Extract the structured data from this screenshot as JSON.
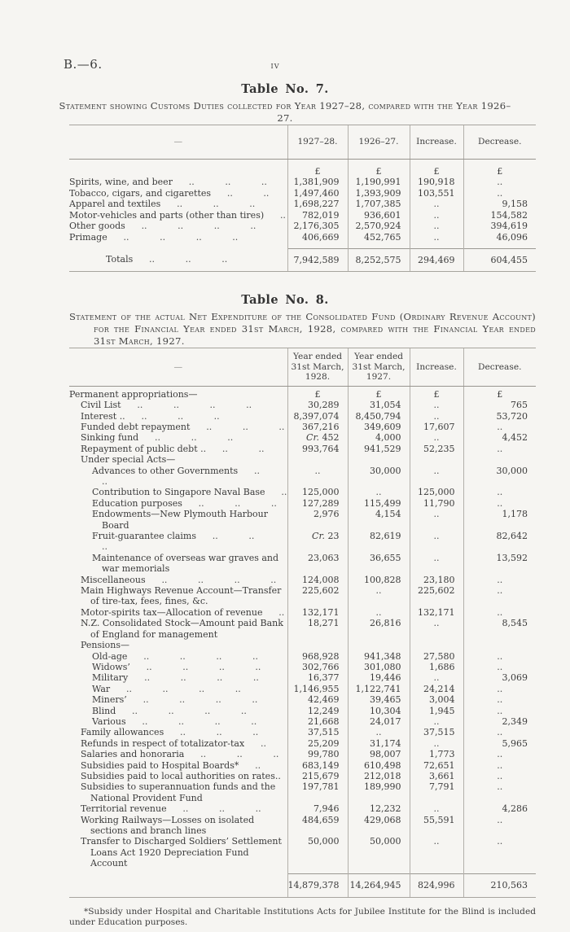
{
  "page": {
    "report_code": "B.—6.",
    "page_number": "iv"
  },
  "table7": {
    "title": "Table No. 7.",
    "caption": "Statement showing Customs Duties collected for Year 1927–28, compared with the Year 1926–27.",
    "stub_header": "—",
    "columns": [
      "1927–28.",
      "1926–27.",
      "Increase.",
      "Decrease."
    ],
    "rows": [
      {
        "label": "",
        "cls": "currency",
        "v": [
          "£",
          "£",
          "£",
          "£"
        ]
      },
      {
        "label": "Spirits, wine, and beer",
        "leader": ".. .. ..",
        "v": [
          "1,381,909",
          "1,190,991",
          "190,918",
          ".."
        ]
      },
      {
        "label": "Tobacco, cigars, and cigarettes",
        "leader": ".. ..",
        "v": [
          "1,497,460",
          "1,393,909",
          "103,551",
          ".."
        ]
      },
      {
        "label": "Apparel and textiles",
        "leader": ".. .. ..",
        "v": [
          "1,698,227",
          "1,707,385",
          "..",
          "9,158"
        ]
      },
      {
        "label": "Motor-vehicles and parts (other than tires)",
        "leader": "..",
        "v": [
          "782,019",
          "936,601",
          "..",
          "154,582"
        ]
      },
      {
        "label": "Other goods",
        "leader": ".. .. .. ..",
        "v": [
          "2,176,305",
          "2,570,924",
          "..",
          "394,619"
        ]
      },
      {
        "label": "Primage",
        "cls": "lastbody",
        "leader": ".. .. .. ..",
        "v": [
          "406,669",
          "452,765",
          "..",
          "46,096"
        ]
      }
    ],
    "totals": {
      "label": "Totals",
      "cls": "t7tot",
      "leader": ".. .. ..",
      "v": [
        "7,942,589",
        "8,252,575",
        "294,469",
        "604,455"
      ]
    }
  },
  "table8": {
    "title": "Table No. 8.",
    "caption": "Statement of the actual Net Expenditure of the Consolidated Fund (Ordinary Revenue Account) for the Financial Year ended 31st March, 1928, compared with the Financial Year ended 31st March, 1927.",
    "stub_header": "—",
    "columns": [
      "Year ended 31st March, 1928.",
      "Year ended 31st March, 1927.",
      "Increase.",
      "Decrease."
    ],
    "rows": [
      {
        "label": "Permanent appropriations—",
        "indent": 0,
        "cls": "currency8",
        "v": [
          "£",
          "£",
          "£",
          "£"
        ]
      },
      {
        "label": "Civil List",
        "indent": 1,
        "leader": ".. .. .. ..",
        "v": [
          "30,289",
          "31,054",
          "..",
          "765"
        ]
      },
      {
        "label": "Interest ..",
        "indent": 1,
        "leader": ".. .. ..",
        "v": [
          "8,397,074",
          "8,450,794",
          "..",
          "53,720"
        ]
      },
      {
        "label": "Funded debt repayment",
        "indent": 1,
        "leader": ".. .. ..",
        "v": [
          "367,216",
          "349,609",
          "17,607",
          ".."
        ]
      },
      {
        "label": "Sinking fund",
        "indent": 1,
        "leader": ".. .. ..",
        "v": [
          "Cr. 452",
          "4,000",
          "..",
          "4,452"
        ]
      },
      {
        "label": "Repayment of public debt ..",
        "indent": 1,
        "leader": ".. ..",
        "v": [
          "993,764",
          "941,529",
          "52,235",
          ".."
        ]
      },
      {
        "label": "Under special Acts—",
        "indent": 1,
        "v": null
      },
      {
        "label": "Advances to other Governments",
        "indent": 2,
        "leader": ".. ..",
        "v": [
          "..",
          "30,000",
          "..",
          "30,000"
        ]
      },
      {
        "label": "Contribution to Singapore Naval Base",
        "indent": 2,
        "leader": "..",
        "v": [
          "125,000",
          "..",
          "125,000",
          ".."
        ]
      },
      {
        "label": "Education purposes",
        "indent": 2,
        "leader": ".. .. ..",
        "v": [
          "127,289",
          "115,499",
          "11,790",
          ".."
        ]
      },
      {
        "label": "Endowments—New Plymouth Harbour Board",
        "indent": 2,
        "v": [
          "2,976",
          "4,154",
          "..",
          "1,178"
        ]
      },
      {
        "label": "Fruit-guarantee claims",
        "indent": 2,
        "leader": ".. .. ..",
        "v": [
          "Cr. 23",
          "82,619",
          "..",
          "82,642"
        ]
      },
      {
        "label": "Maintenance of overseas war graves and war memorials",
        "indent": 2,
        "v": [
          "23,063",
          "36,655",
          "..",
          "13,592"
        ]
      },
      {
        "label": "Miscellaneous",
        "indent": 1,
        "leader": ".. .. .. ..",
        "v": [
          "124,008",
          "100,828",
          "23,180",
          ".."
        ]
      },
      {
        "label": "Main Highways Revenue Account—Transfer of tire-tax, fees, fines, &c.",
        "indent": 1,
        "v": [
          "225,602",
          "..",
          "225,602",
          ".."
        ]
      },
      {
        "label": "Motor-spirits tax—Allocation of revenue",
        "indent": 1,
        "leader": "..",
        "v": [
          "132,171",
          "..",
          "132,171",
          ".."
        ]
      },
      {
        "label": "N.Z. Consolidated Stock—Amount paid Bank of England for management",
        "indent": 1,
        "v": [
          "18,271",
          "26,816",
          "..",
          "8,545"
        ]
      },
      {
        "label": "Pensions—",
        "indent": 1,
        "v": null
      },
      {
        "label": "Old-age",
        "indent": 2,
        "leader": ".. .. .. ..",
        "v": [
          "968,928",
          "941,348",
          "27,580",
          ".."
        ]
      },
      {
        "label": "Widows’",
        "indent": 2,
        "leader": ".. .. .. ..",
        "v": [
          "302,766",
          "301,080",
          "1,686",
          ".."
        ]
      },
      {
        "label": "Military",
        "indent": 2,
        "leader": ".. .. .. ..",
        "v": [
          "16,377",
          "19,446",
          "..",
          "3,069"
        ]
      },
      {
        "label": "War",
        "indent": 2,
        "leader": ".. .. .. ..",
        "v": [
          "1,146,955",
          "1,122,741",
          "24,214",
          ".."
        ]
      },
      {
        "label": "Miners’",
        "indent": 2,
        "leader": ".. .. .. ..",
        "v": [
          "42,469",
          "39,465",
          "3,004",
          ".."
        ]
      },
      {
        "label": "Blind",
        "indent": 2,
        "leader": ".. .. .. ..",
        "v": [
          "12,249",
          "10,304",
          "1,945",
          ".."
        ]
      },
      {
        "label": "Various",
        "indent": 2,
        "leader": ".. .. .. ..",
        "v": [
          "21,668",
          "24,017",
          "..",
          "2,349"
        ]
      },
      {
        "label": "Family allowances",
        "indent": 1,
        "leader": ".. .. ..",
        "v": [
          "37,515",
          "..",
          "37,515",
          ".."
        ]
      },
      {
        "label": "Refunds in respect of totalizator-tax",
        "indent": 1,
        "leader": "..",
        "v": [
          "25,209",
          "31,174",
          "..",
          "5,965"
        ]
      },
      {
        "label": "Salaries and honoraria",
        "indent": 1,
        "leader": ".. .. ..",
        "v": [
          "99,780",
          "98,007",
          "1,773",
          ".."
        ]
      },
      {
        "label": "Subsidies paid to Hospital Boards*",
        "indent": 1,
        "leader": "..",
        "v": [
          "683,149",
          "610,498",
          "72,651",
          ".."
        ]
      },
      {
        "label": "Subsidies paid to local authorities on rates..",
        "indent": 1,
        "v": [
          "215,679",
          "212,018",
          "3,661",
          ".."
        ]
      },
      {
        "label": "Subsidies to superannuation funds and the National Provident Fund",
        "indent": 1,
        "v": [
          "197,781",
          "189,990",
          "7,791",
          ".."
        ]
      },
      {
        "label": "Territorial revenue",
        "indent": 1,
        "leader": ".. .. ..",
        "v": [
          "7,946",
          "12,232",
          "..",
          "4,286"
        ]
      },
      {
        "label": "Working Railways—Losses on isolated sections and branch lines",
        "indent": 1,
        "v": [
          "484,659",
          "429,068",
          "55,591",
          ".."
        ]
      },
      {
        "label": "Transfer to Discharged Soldiers’ Settlement Loans Act 1920 Depreciation Fund Account",
        "indent": 1,
        "cls": "lastbody",
        "v": [
          "50,000",
          "50,000",
          "..",
          ".."
        ]
      }
    ],
    "totals": {
      "label": "",
      "v": [
        "14,879,378",
        "14,264,945",
        "824,996",
        "210,563"
      ]
    }
  },
  "footnote": "*Subsidy under Hospital and Charitable Institutions Acts for Jubilee Institute for the Blind is included under Education purposes."
}
